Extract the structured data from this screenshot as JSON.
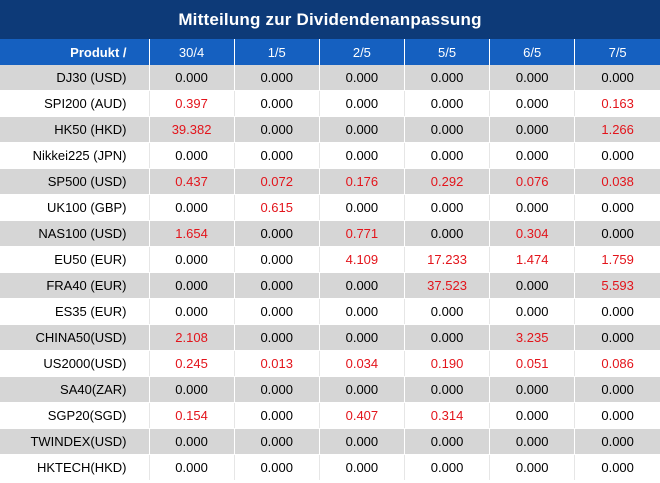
{
  "title": "Mitteilung zur Dividendenanpassung",
  "header": {
    "product_label": "Produkt /",
    "dates": [
      "30/4",
      "1/5",
      "2/5",
      "5/5",
      "6/5",
      "7/5"
    ]
  },
  "colors": {
    "title_bg": "#0d3a78",
    "header_bg": "#1560c0",
    "nonzero": "#e3141b",
    "stripe": "#d6d6d6"
  },
  "rows": [
    {
      "product": "DJ30 (USD)",
      "values": [
        "0.000",
        "0.000",
        "0.000",
        "0.000",
        "0.000",
        "0.000"
      ]
    },
    {
      "product": "SPI200 (AUD)",
      "values": [
        "0.397",
        "0.000",
        "0.000",
        "0.000",
        "0.000",
        "0.163"
      ]
    },
    {
      "product": "HK50 (HKD)",
      "values": [
        "39.382",
        "0.000",
        "0.000",
        "0.000",
        "0.000",
        "1.266"
      ]
    },
    {
      "product": "Nikkei225 (JPN)",
      "values": [
        "0.000",
        "0.000",
        "0.000",
        "0.000",
        "0.000",
        "0.000"
      ]
    },
    {
      "product": "SP500 (USD)",
      "values": [
        "0.437",
        "0.072",
        "0.176",
        "0.292",
        "0.076",
        "0.038"
      ]
    },
    {
      "product": "UK100 (GBP)",
      "values": [
        "0.000",
        "0.615",
        "0.000",
        "0.000",
        "0.000",
        "0.000"
      ]
    },
    {
      "product": "NAS100 (USD)",
      "values": [
        "1.654",
        "0.000",
        "0.771",
        "0.000",
        "0.304",
        "0.000"
      ]
    },
    {
      "product": "EU50 (EUR)",
      "values": [
        "0.000",
        "0.000",
        "4.109",
        "17.233",
        "1.474",
        "1.759"
      ]
    },
    {
      "product": "FRA40 (EUR)",
      "values": [
        "0.000",
        "0.000",
        "0.000",
        "37.523",
        "0.000",
        "5.593"
      ]
    },
    {
      "product": "ES35 (EUR)",
      "values": [
        "0.000",
        "0.000",
        "0.000",
        "0.000",
        "0.000",
        "0.000"
      ]
    },
    {
      "product": "CHINA50(USD)",
      "values": [
        "2.108",
        "0.000",
        "0.000",
        "0.000",
        "3.235",
        "0.000"
      ]
    },
    {
      "product": "US2000(USD)",
      "values": [
        "0.245",
        "0.013",
        "0.034",
        "0.190",
        "0.051",
        "0.086"
      ]
    },
    {
      "product": "SA40(ZAR)",
      "values": [
        "0.000",
        "0.000",
        "0.000",
        "0.000",
        "0.000",
        "0.000"
      ]
    },
    {
      "product": "SGP20(SGD)",
      "values": [
        "0.154",
        "0.000",
        "0.407",
        "0.314",
        "0.000",
        "0.000"
      ]
    },
    {
      "product": "TWINDEX(USD)",
      "values": [
        "0.000",
        "0.000",
        "0.000",
        "0.000",
        "0.000",
        "0.000"
      ]
    },
    {
      "product": "HKTECH(HKD)",
      "values": [
        "0.000",
        "0.000",
        "0.000",
        "0.000",
        "0.000",
        "0.000"
      ]
    }
  ]
}
